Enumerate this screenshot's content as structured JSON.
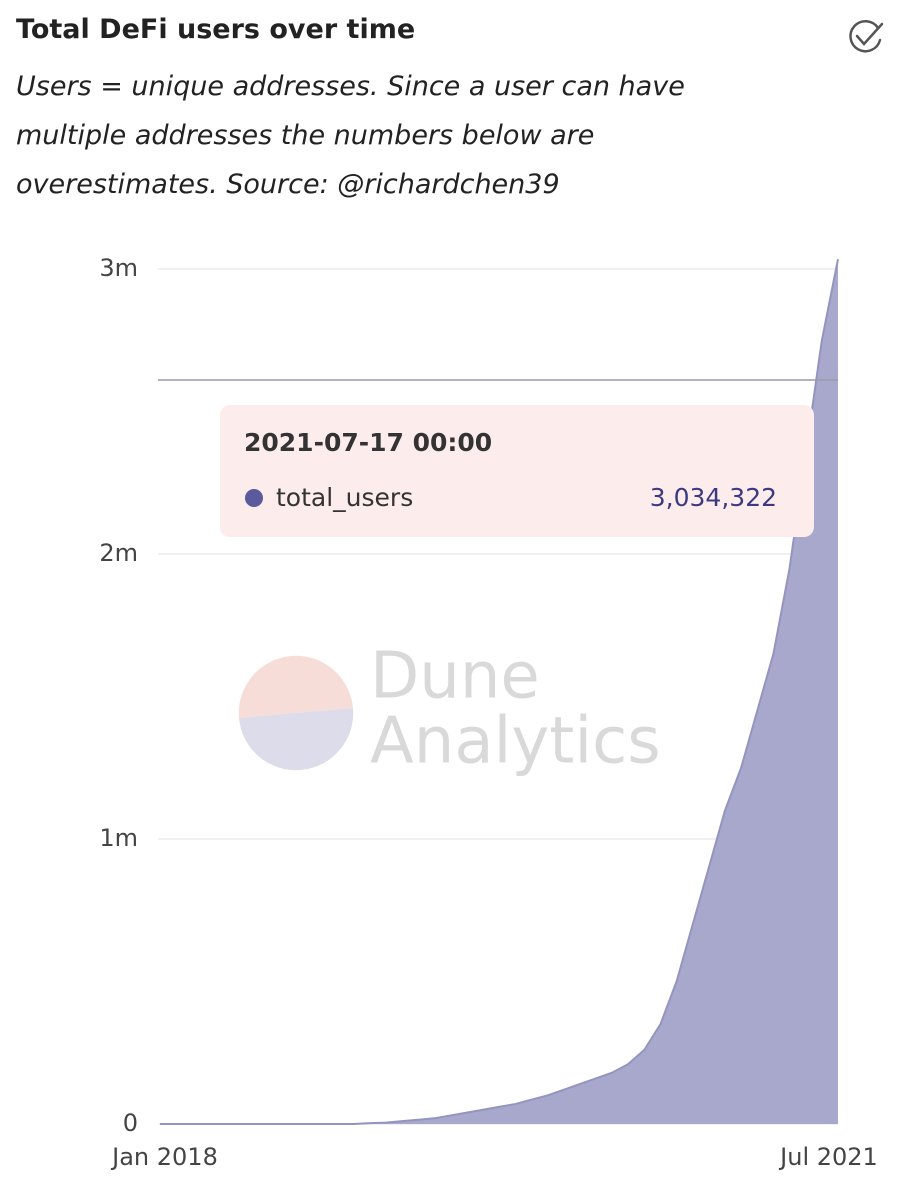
{
  "header": {
    "title": "Total DeFi users over time",
    "subtitle": "Users = unique addresses. Since a user can have multiple addresses the numbers below are overestimates. Source: @richardchen39"
  },
  "chart_data": {
    "type": "area",
    "x": [
      "2018-01",
      "2018-02",
      "2018-03",
      "2018-04",
      "2018-05",
      "2018-06",
      "2018-07",
      "2018-08",
      "2018-09",
      "2018-10",
      "2018-11",
      "2018-12",
      "2019-01",
      "2019-02",
      "2019-03",
      "2019-04",
      "2019-05",
      "2019-06",
      "2019-07",
      "2019-08",
      "2019-09",
      "2019-10",
      "2019-11",
      "2019-12",
      "2020-01",
      "2020-02",
      "2020-03",
      "2020-04",
      "2020-05",
      "2020-06",
      "2020-07",
      "2020-08",
      "2020-09",
      "2020-10",
      "2020-11",
      "2020-12",
      "2021-01",
      "2021-02",
      "2021-03",
      "2021-04",
      "2021-05",
      "2021-06",
      "2021-07"
    ],
    "series": [
      {
        "name": "total_users",
        "color": "#a8a8cc",
        "values": [
          0,
          0,
          0,
          0,
          0,
          0,
          0,
          0,
          0,
          0,
          0,
          0,
          0,
          3000,
          5000,
          10000,
          15000,
          20000,
          30000,
          40000,
          50000,
          60000,
          70000,
          85000,
          100000,
          120000,
          140000,
          160000,
          180000,
          210000,
          260000,
          350000,
          500000,
          700000,
          900000,
          1100000,
          1250000,
          1450000,
          1650000,
          1950000,
          2350000,
          2750000,
          3034322
        ]
      }
    ],
    "xlim": [
      "2018-01",
      "2021-07"
    ],
    "xticks": [
      {
        "value": "2018-01",
        "label": "Jan 2018"
      },
      {
        "value": "2021-07",
        "label": "Jul 2021"
      }
    ],
    "ylim": [
      0,
      3000000
    ],
    "yticks": [
      {
        "value": 0,
        "label": "0"
      },
      {
        "value": 1000000,
        "label": "1m"
      },
      {
        "value": 2000000,
        "label": "2m"
      },
      {
        "value": 3000000,
        "label": "3m"
      }
    ],
    "grid": true,
    "tooltip": {
      "title": "2021-07-17 00:00",
      "series": "total_users",
      "color": "#5b5a9c",
      "value": 3034322,
      "label": "3,034,322"
    },
    "watermark": [
      "Dune",
      "Analytics"
    ]
  }
}
